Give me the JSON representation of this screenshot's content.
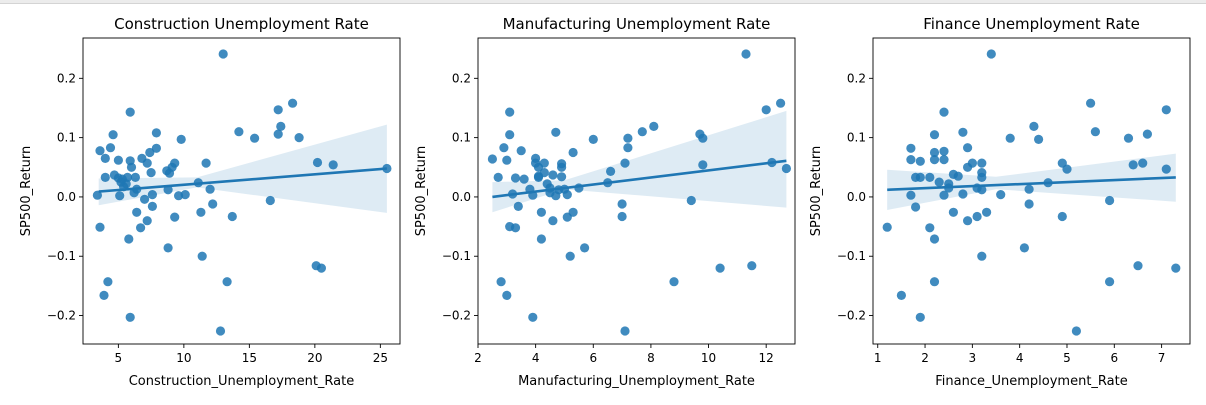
{
  "chart_data": [
    {
      "type": "scatter",
      "title": "Construction Unemployment Rate",
      "xlabel": "Construction_Unemployment_Rate",
      "ylabel": "SP500_Return",
      "xlim": [
        2.3,
        26.5
      ],
      "ylim": [
        -0.248,
        0.268
      ],
      "xticks": [
        5,
        10,
        15,
        20,
        25
      ],
      "xtick_labels": [
        "5",
        "10",
        "15",
        "20",
        "25"
      ],
      "yticks": [
        -0.2,
        -0.1,
        0.0,
        0.1,
        0.2
      ],
      "ytick_labels": [
        "−0.2",
        "−0.1",
        "0.0",
        "0.1",
        "0.2"
      ],
      "regression": {
        "x": [
          3.5,
          25.5
        ],
        "y": [
          0.009,
          0.048
        ]
      },
      "ci_band": {
        "x": [
          3.5,
          11,
          25.5
        ],
        "upper": [
          0.031,
          0.033,
          0.122
        ],
        "lower": [
          -0.014,
          0.016,
          -0.027
        ]
      },
      "color": "#1f77b4",
      "points": [
        [
          3.4,
          0.003
        ],
        [
          3.6,
          -0.051
        ],
        [
          3.6,
          0.078
        ],
        [
          3.9,
          -0.166
        ],
        [
          4.0,
          0.033
        ],
        [
          4.0,
          0.065
        ],
        [
          4.2,
          -0.143
        ],
        [
          4.4,
          0.083
        ],
        [
          4.6,
          0.105
        ],
        [
          4.7,
          0.037
        ],
        [
          5.0,
          0.062
        ],
        [
          5.0,
          0.032
        ],
        [
          5.1,
          0.002
        ],
        [
          5.2,
          0.025
        ],
        [
          5.3,
          0.03
        ],
        [
          5.4,
          0.017
        ],
        [
          5.6,
          0.022
        ],
        [
          5.7,
          0.033
        ],
        [
          5.8,
          -0.071
        ],
        [
          5.9,
          0.143
        ],
        [
          5.9,
          0.061
        ],
        [
          5.9,
          -0.203
        ],
        [
          6.0,
          0.05
        ],
        [
          6.2,
          0.007
        ],
        [
          6.3,
          0.033
        ],
        [
          6.4,
          0.013
        ],
        [
          6.4,
          -0.026
        ],
        [
          6.7,
          -0.052
        ],
        [
          6.8,
          0.065
        ],
        [
          7.0,
          -0.004
        ],
        [
          7.2,
          0.057
        ],
        [
          7.2,
          -0.04
        ],
        [
          7.4,
          0.075
        ],
        [
          7.5,
          0.041
        ],
        [
          7.6,
          0.004
        ],
        [
          7.6,
          -0.016
        ],
        [
          7.9,
          0.108
        ],
        [
          7.9,
          0.082
        ],
        [
          8.7,
          0.044
        ],
        [
          8.8,
          0.012
        ],
        [
          8.8,
          -0.086
        ],
        [
          8.9,
          0.04
        ],
        [
          9.1,
          0.05
        ],
        [
          9.3,
          0.057
        ],
        [
          9.3,
          -0.034
        ],
        [
          9.6,
          0.002
        ],
        [
          9.8,
          0.097
        ],
        [
          10.1,
          0.004
        ],
        [
          11.1,
          0.024
        ],
        [
          11.3,
          -0.026
        ],
        [
          11.4,
          -0.1
        ],
        [
          11.7,
          0.057
        ],
        [
          12.0,
          0.013
        ],
        [
          12.2,
          -0.012
        ],
        [
          12.8,
          -0.226
        ],
        [
          13.0,
          0.241
        ],
        [
          13.3,
          -0.143
        ],
        [
          13.7,
          -0.033
        ],
        [
          14.2,
          0.11
        ],
        [
          15.4,
          0.099
        ],
        [
          16.6,
          -0.006
        ],
        [
          17.2,
          0.147
        ],
        [
          17.2,
          0.106
        ],
        [
          17.4,
          0.119
        ],
        [
          18.3,
          0.158
        ],
        [
          18.8,
          0.1
        ],
        [
          20.1,
          -0.116
        ],
        [
          20.2,
          0.058
        ],
        [
          20.5,
          -0.12
        ],
        [
          21.4,
          0.054
        ],
        [
          25.5,
          0.048
        ]
      ]
    },
    {
      "type": "scatter",
      "title": "Manufacturing Unemployment Rate",
      "xlabel": "Manufacturing_Unemployment_Rate",
      "ylabel": "SP500_Return",
      "xlim": [
        2.0,
        13.0
      ],
      "ylim": [
        -0.248,
        0.268
      ],
      "xticks": [
        2,
        4,
        6,
        8,
        10,
        12
      ],
      "xtick_labels": [
        "2",
        "4",
        "6",
        "8",
        "10",
        "12"
      ],
      "yticks": [
        -0.2,
        -0.1,
        0.0,
        0.1,
        0.2
      ],
      "ytick_labels": [
        "−0.2",
        "−0.1",
        "0.0",
        "0.1",
        "0.2"
      ],
      "regression": {
        "x": [
          2.5,
          12.7
        ],
        "y": [
          0.0,
          0.061
        ]
      },
      "ci_band": {
        "x": [
          2.5,
          5,
          12.7
        ],
        "upper": [
          0.025,
          0.028,
          0.145
        ],
        "lower": [
          -0.026,
          0.013,
          -0.018
        ]
      },
      "color": "#1f77b4",
      "points": [
        [
          2.5,
          0.064
        ],
        [
          2.7,
          0.033
        ],
        [
          2.8,
          -0.143
        ],
        [
          2.9,
          0.083
        ],
        [
          3.0,
          -0.166
        ],
        [
          3.0,
          0.062
        ],
        [
          3.1,
          0.143
        ],
        [
          3.1,
          0.105
        ],
        [
          3.1,
          -0.05
        ],
        [
          3.2,
          0.005
        ],
        [
          3.3,
          -0.052
        ],
        [
          3.3,
          0.032
        ],
        [
          3.4,
          -0.016
        ],
        [
          3.5,
          0.078
        ],
        [
          3.6,
          0.03
        ],
        [
          3.8,
          0.013
        ],
        [
          3.9,
          -0.203
        ],
        [
          3.9,
          0.003
        ],
        [
          4.0,
          0.065
        ],
        [
          4.0,
          0.057
        ],
        [
          4.1,
          0.033
        ],
        [
          4.1,
          0.05
        ],
        [
          4.1,
          0.035
        ],
        [
          4.2,
          -0.026
        ],
        [
          4.2,
          -0.071
        ],
        [
          4.3,
          0.057
        ],
        [
          4.3,
          0.041
        ],
        [
          4.4,
          0.022
        ],
        [
          4.5,
          0.015
        ],
        [
          4.5,
          0.007
        ],
        [
          4.6,
          -0.04
        ],
        [
          4.6,
          0.037
        ],
        [
          4.7,
          0.002
        ],
        [
          4.7,
          0.109
        ],
        [
          4.8,
          0.012
        ],
        [
          4.9,
          0.056
        ],
        [
          4.9,
          0.05
        ],
        [
          4.9,
          0.034
        ],
        [
          5.0,
          0.013
        ],
        [
          5.1,
          -0.034
        ],
        [
          5.1,
          0.004
        ],
        [
          5.2,
          -0.1
        ],
        [
          5.3,
          0.075
        ],
        [
          5.3,
          -0.026
        ],
        [
          5.5,
          0.015
        ],
        [
          5.7,
          -0.086
        ],
        [
          6.0,
          0.097
        ],
        [
          6.5,
          0.024
        ],
        [
          6.6,
          0.043
        ],
        [
          7.0,
          -0.012
        ],
        [
          7.0,
          -0.033
        ],
        [
          7.1,
          0.057
        ],
        [
          7.1,
          -0.226
        ],
        [
          7.2,
          0.099
        ],
        [
          7.2,
          0.083
        ],
        [
          7.7,
          0.11
        ],
        [
          8.1,
          0.119
        ],
        [
          8.8,
          -0.143
        ],
        [
          9.4,
          -0.006
        ],
        [
          9.7,
          0.106
        ],
        [
          9.8,
          0.099
        ],
        [
          9.8,
          0.054
        ],
        [
          10.4,
          -0.12
        ],
        [
          11.3,
          0.241
        ],
        [
          11.5,
          -0.116
        ],
        [
          12.0,
          0.147
        ],
        [
          12.2,
          0.058
        ],
        [
          12.5,
          0.158
        ],
        [
          12.7,
          0.048
        ]
      ]
    },
    {
      "type": "scatter",
      "title": "Finance Unemployment Rate",
      "xlabel": "Finance_Unemployment_Rate",
      "ylabel": "SP500_Return",
      "xlim": [
        0.9,
        7.6
      ],
      "ylim": [
        -0.248,
        0.268
      ],
      "xticks": [
        1,
        2,
        3,
        4,
        5,
        6,
        7
      ],
      "xtick_labels": [
        "1",
        "2",
        "3",
        "4",
        "5",
        "6",
        "7"
      ],
      "yticks": [
        -0.2,
        -0.1,
        0.0,
        0.1,
        0.2
      ],
      "ytick_labels": [
        "−0.2",
        "−0.1",
        "0.0",
        "0.1",
        "0.2"
      ],
      "regression": {
        "x": [
          1.2,
          7.3
        ],
        "y": [
          0.012,
          0.033
        ]
      },
      "ci_band": {
        "x": [
          1.2,
          3.5,
          7.3
        ],
        "upper": [
          0.046,
          0.034,
          0.073
        ],
        "lower": [
          -0.022,
          0.013,
          -0.008
        ]
      },
      "color": "#1f77b4",
      "points": [
        [
          1.2,
          -0.051
        ],
        [
          1.5,
          -0.166
        ],
        [
          1.7,
          0.082
        ],
        [
          1.7,
          0.063
        ],
        [
          1.7,
          0.003
        ],
        [
          1.8,
          -0.017
        ],
        [
          1.8,
          0.033
        ],
        [
          1.9,
          -0.203
        ],
        [
          1.9,
          0.06
        ],
        [
          1.9,
          0.033
        ],
        [
          2.1,
          0.033
        ],
        [
          2.1,
          -0.052
        ],
        [
          2.2,
          0.105
        ],
        [
          2.2,
          0.075
        ],
        [
          2.2,
          0.063
        ],
        [
          2.2,
          -0.071
        ],
        [
          2.2,
          -0.143
        ],
        [
          2.3,
          0.025
        ],
        [
          2.4,
          0.143
        ],
        [
          2.4,
          0.077
        ],
        [
          2.4,
          0.063
        ],
        [
          2.4,
          0.003
        ],
        [
          2.5,
          0.022
        ],
        [
          2.5,
          0.015
        ],
        [
          2.6,
          0.038
        ],
        [
          2.6,
          -0.026
        ],
        [
          2.7,
          0.035
        ],
        [
          2.8,
          0.005
        ],
        [
          2.8,
          0.109
        ],
        [
          2.9,
          0.083
        ],
        [
          2.9,
          0.05
        ],
        [
          2.9,
          -0.04
        ],
        [
          3.0,
          0.057
        ],
        [
          3.1,
          -0.033
        ],
        [
          3.1,
          0.015
        ],
        [
          3.2,
          0.012
        ],
        [
          3.2,
          0.057
        ],
        [
          3.2,
          0.041
        ],
        [
          3.2,
          -0.1
        ],
        [
          3.3,
          -0.026
        ],
        [
          3.2,
          0.033
        ],
        [
          3.4,
          0.241
        ],
        [
          3.6,
          0.004
        ],
        [
          3.8,
          0.099
        ],
        [
          4.1,
          -0.086
        ],
        [
          4.2,
          0.013
        ],
        [
          4.2,
          -0.012
        ],
        [
          4.3,
          0.119
        ],
        [
          4.4,
          0.097
        ],
        [
          4.6,
          0.024
        ],
        [
          4.9,
          -0.033
        ],
        [
          4.9,
          0.057
        ],
        [
          5.0,
          0.047
        ],
        [
          5.2,
          -0.226
        ],
        [
          5.5,
          0.158
        ],
        [
          5.6,
          0.11
        ],
        [
          5.9,
          -0.006
        ],
        [
          5.9,
          -0.143
        ],
        [
          6.3,
          0.099
        ],
        [
          6.4,
          0.054
        ],
        [
          6.5,
          -0.116
        ],
        [
          6.6,
          0.057
        ],
        [
          6.7,
          0.106
        ],
        [
          7.1,
          0.147
        ],
        [
          7.1,
          0.047
        ],
        [
          7.3,
          -0.12
        ]
      ]
    }
  ]
}
